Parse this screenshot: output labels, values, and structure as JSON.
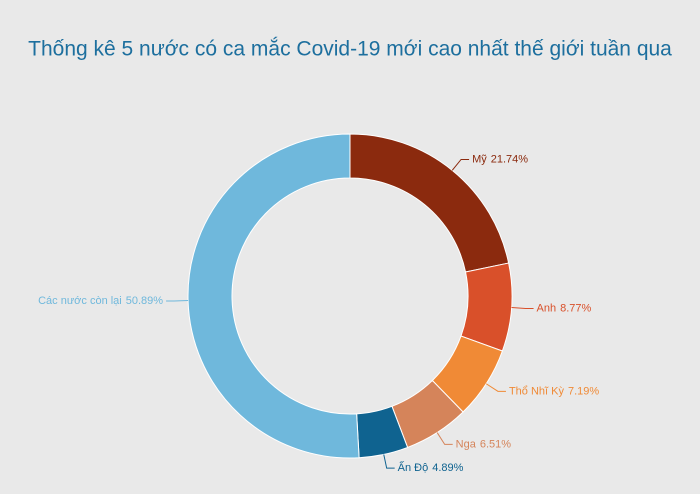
{
  "chart_data": {
    "type": "donut",
    "title": "Thống kê 5 nước có ca mắc Covid-19 mới cao nhất thế giới tuần qua",
    "categories": [
      "Mỹ",
      "Anh",
      "Thổ Nhĩ Kỳ",
      "Nga",
      "Ấn Độ",
      "Các nước còn lại"
    ],
    "values": [
      21.74,
      8.77,
      7.19,
      6.51,
      4.89,
      50.89
    ],
    "value_labels": [
      "21.74%",
      "8.77%",
      "7.19%",
      "6.51%",
      "4.89%",
      "50.89%"
    ],
    "colors": [
      "#8b2a0e",
      "#d9502a",
      "#f08a36",
      "#d5845a",
      "#0f6390",
      "#6fb8dc"
    ]
  }
}
